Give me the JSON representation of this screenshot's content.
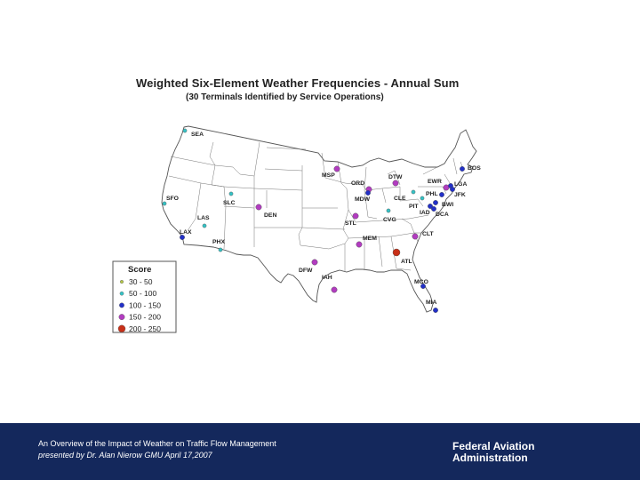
{
  "map": {
    "title": "Weighted Six-Element Weather Frequencies - Annual Sum",
    "subtitle": "(30 Terminals Identified by Service Operations)",
    "legend": {
      "title": "Score",
      "items": [
        {
          "label": "30 - 50",
          "color": "#b5c847"
        },
        {
          "label": "50 - 100",
          "color": "#35c3c6"
        },
        {
          "label": "100 - 150",
          "color": "#2230c8"
        },
        {
          "label": "150 - 200",
          "color": "#b23cc0"
        },
        {
          "label": "200 - 250",
          "color": "#c83018"
        }
      ]
    },
    "airports": [
      {
        "code": "SEA",
        "score_class": 1
      },
      {
        "code": "SFO",
        "score_class": 1
      },
      {
        "code": "SLC",
        "score_class": 1
      },
      {
        "code": "LAS",
        "score_class": 1
      },
      {
        "code": "LAX",
        "score_class": 2
      },
      {
        "code": "PHX",
        "score_class": 1
      },
      {
        "code": "DEN",
        "score_class": 3
      },
      {
        "code": "MSP",
        "score_class": 3
      },
      {
        "code": "ORD",
        "score_class": 3
      },
      {
        "code": "MDW",
        "score_class": 2
      },
      {
        "code": "DTW",
        "score_class": 3
      },
      {
        "code": "CLE",
        "score_class": 1
      },
      {
        "code": "PIT",
        "score_class": 1
      },
      {
        "code": "STL",
        "score_class": 3
      },
      {
        "code": "CVG",
        "score_class": 1
      },
      {
        "code": "MEM",
        "score_class": 3
      },
      {
        "code": "CLT",
        "score_class": 3
      },
      {
        "code": "ATL",
        "score_class": 4
      },
      {
        "code": "DFW",
        "score_class": 3
      },
      {
        "code": "IAH",
        "score_class": 3
      },
      {
        "code": "MCO",
        "score_class": 2
      },
      {
        "code": "MIA",
        "score_class": 2
      },
      {
        "code": "BOS",
        "score_class": 2
      },
      {
        "code": "EWR",
        "score_class": 3
      },
      {
        "code": "LGA",
        "score_class": 2
      },
      {
        "code": "JFK",
        "score_class": 2
      },
      {
        "code": "PHL",
        "score_class": 2
      },
      {
        "code": "BWI",
        "score_class": 2
      },
      {
        "code": "IAD",
        "score_class": 2
      },
      {
        "code": "DCA",
        "score_class": 2
      }
    ]
  },
  "footer": {
    "line1": "An Overview of the Impact of Weather on Traffic Flow Management",
    "line2": "presented by Dr. Alan Nierow GMU April 17,2007",
    "org_line1": "Federal Aviation",
    "org_line2": "Administration"
  }
}
